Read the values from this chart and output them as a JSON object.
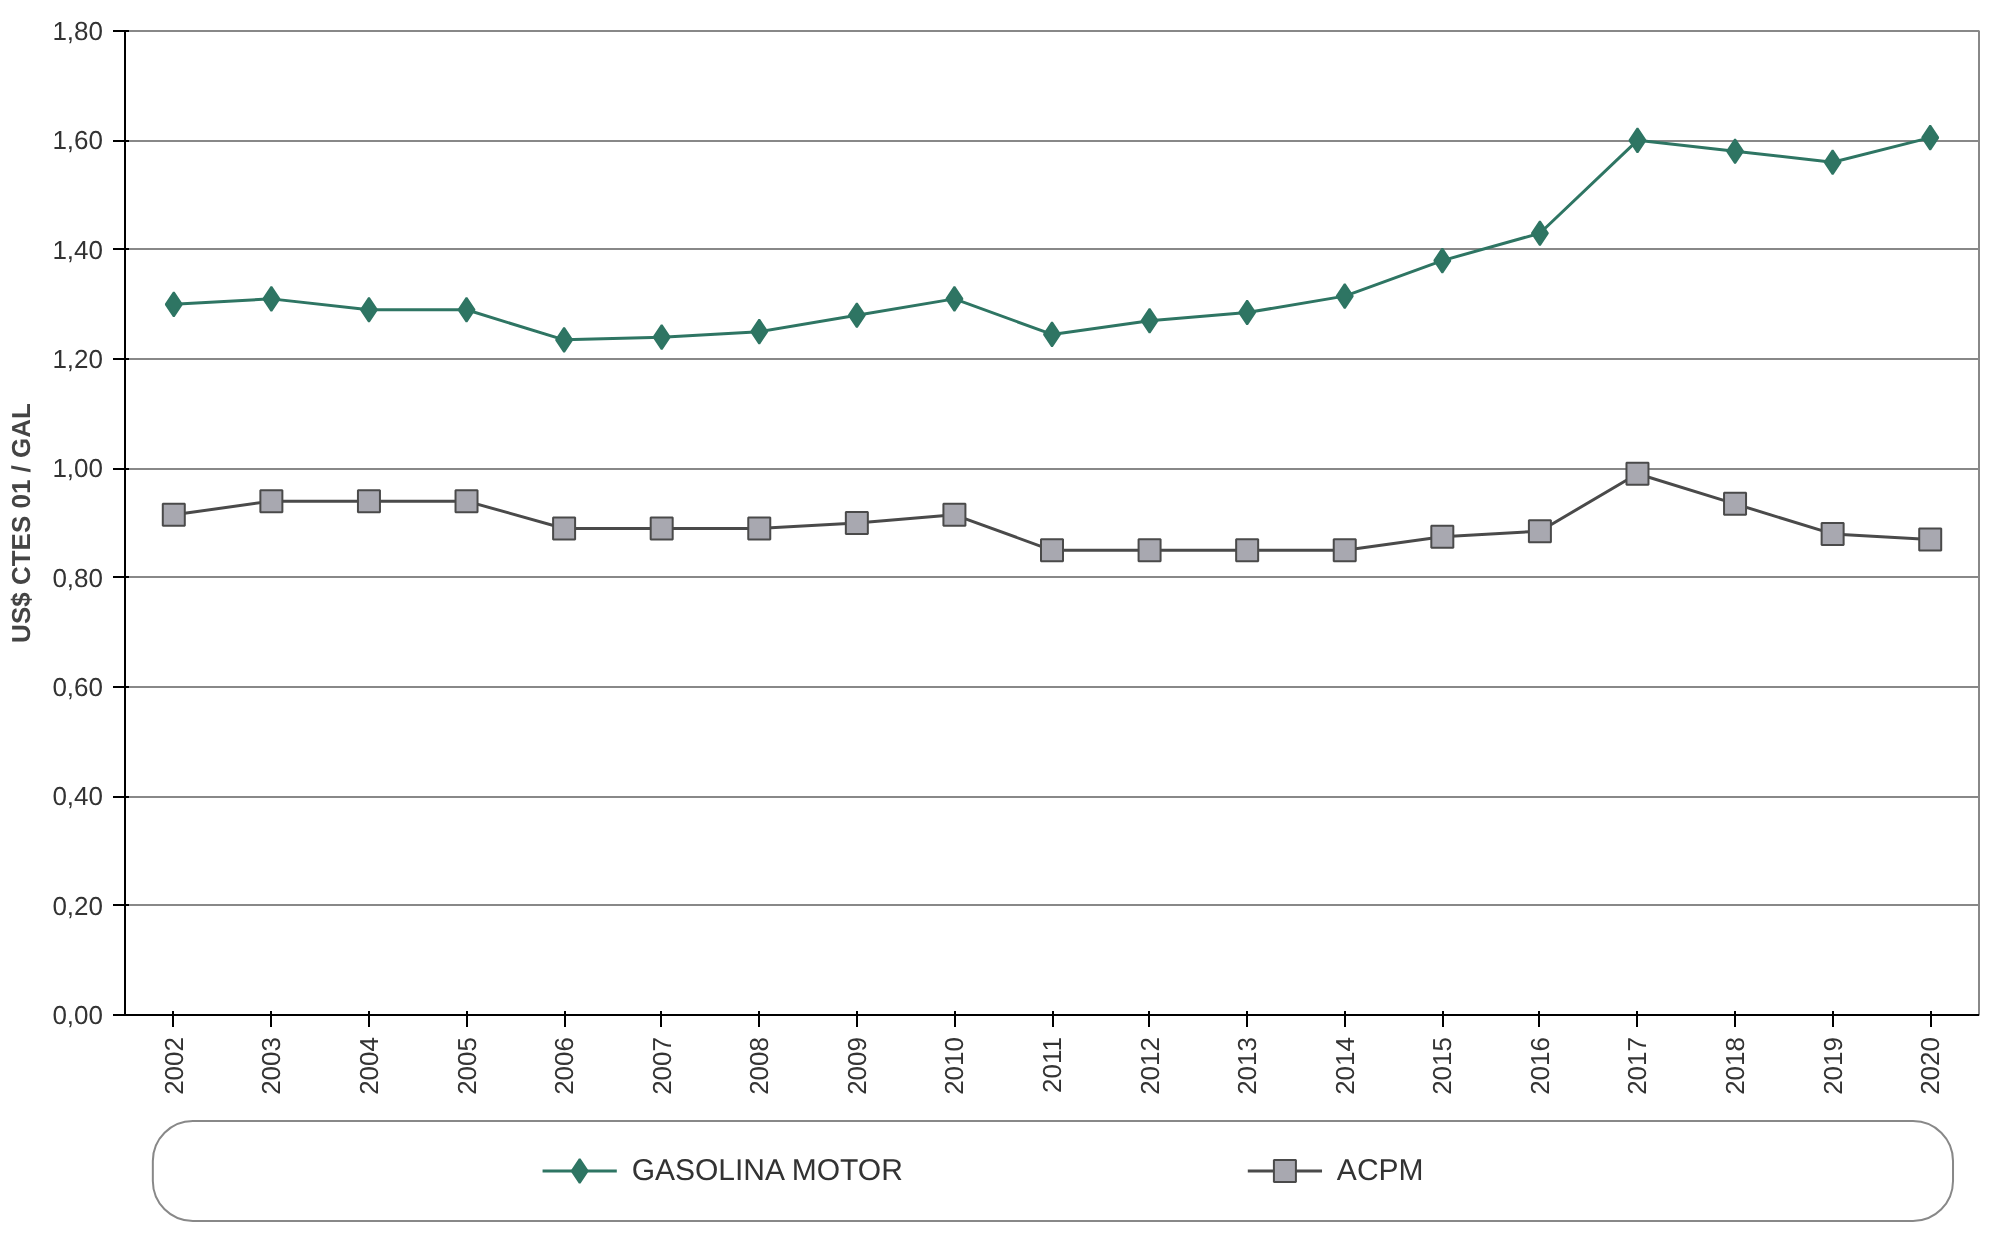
{
  "chart_data": {
    "type": "line",
    "ylabel": "US$ CTES 01 / GAL",
    "categories": [
      "2002",
      "2003",
      "2004",
      "2005",
      "2006",
      "2007",
      "2008",
      "2009",
      "2010",
      "2011",
      "2012",
      "2013",
      "2014",
      "2015",
      "2016",
      "2017",
      "2018",
      "2019",
      "2020"
    ],
    "series": [
      {
        "name": "GASOLINA MOTOR",
        "color": "#2e7563",
        "marker": "diamond",
        "values": [
          1.3,
          1.31,
          1.29,
          1.29,
          1.235,
          1.24,
          1.25,
          1.28,
          1.31,
          1.245,
          1.27,
          1.285,
          1.315,
          1.38,
          1.43,
          1.6,
          1.58,
          1.56,
          1.605
        ]
      },
      {
        "name": "ACPM",
        "color": "#4a4a4a",
        "marker": "square",
        "values": [
          0.915,
          0.94,
          0.94,
          0.94,
          0.89,
          0.89,
          0.89,
          0.9,
          0.915,
          0.85,
          0.85,
          0.85,
          0.85,
          0.875,
          0.885,
          0.99,
          0.935,
          0.88,
          0.87
        ]
      }
    ],
    "ylim": [
      0,
      1.8
    ],
    "yticks": [
      {
        "value": 0,
        "label": "0,00"
      },
      {
        "value": 0.2,
        "label": "0,20"
      },
      {
        "value": 0.4,
        "label": "0,40"
      },
      {
        "value": 0.6,
        "label": "0,60"
      },
      {
        "value": 0.8,
        "label": "0,80"
      },
      {
        "value": 1.0,
        "label": "1,00"
      },
      {
        "value": 1.2,
        "label": "1,20"
      },
      {
        "value": 1.4,
        "label": "1,40"
      },
      {
        "value": 1.6,
        "label": "1,60"
      },
      {
        "value": 1.8,
        "label": "1,80"
      }
    ],
    "grid": "y",
    "legend": "bottom",
    "line_style": "solid"
  }
}
